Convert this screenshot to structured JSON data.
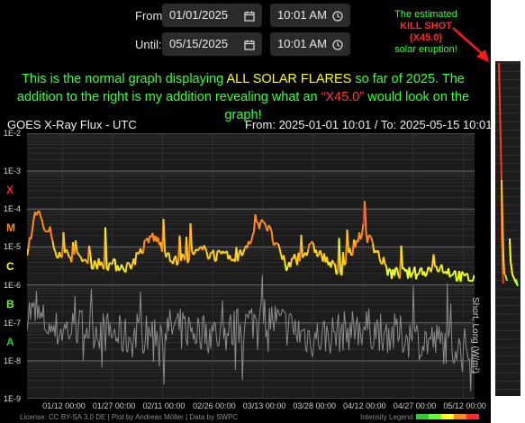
{
  "controls": {
    "from_label": "From:",
    "from_date": "01/01/2025",
    "from_time": "10:01 AM",
    "until_label": "Until:",
    "until_date": "05/15/2025",
    "until_time": "10:01 AM"
  },
  "icons": {
    "date": "calendar-icon",
    "time": "clock-icon"
  },
  "callout": {
    "line1": "The estimated",
    "line2": "KILL SHOT",
    "line3": "(X45.0)",
    "line4": "solar eruption!",
    "arrow_color": "#ff1a1a"
  },
  "message": {
    "part1": "This is the normal graph displaying ",
    "highlight1": "ALL SOLAR FLARES",
    "part2": " so far of 2025.  The addition to the right is my addition revealing what an ",
    "highlight2": "“X45.0”",
    "part3": " would look on the graph!"
  },
  "chart": {
    "title": "GOES X-Ray Flux - UTC",
    "range_prefix": "From:",
    "range_from": "2025-01-01 10:01",
    "range_sep": "/  To:",
    "range_to": "2025-05-15 10:01",
    "yticks": [
      "1E-2",
      "1E-3",
      "1E-4",
      "1E-5",
      "1E-6",
      "1E-7",
      "1E-8",
      "1E-9"
    ],
    "classes": [
      {
        "name": "X",
        "color": "#ff2a2a"
      },
      {
        "name": "M",
        "color": "#ff8c1a"
      },
      {
        "name": "C",
        "color": "#ffff1a"
      },
      {
        "name": "B",
        "color": "#66ff33"
      },
      {
        "name": "A",
        "color": "#33cc33"
      }
    ],
    "xticks": [
      "01/12 00:00",
      "01/27 00:00",
      "02/11 00:00",
      "02/26 00:00",
      "03/13 00:00",
      "03/28 00:00",
      "04/12 00:00",
      "04/27 00:00",
      "05/12 00:00"
    ],
    "side_label": "Short, Long (W/m²)",
    "footer_left": "License: CC BY-SA 3.0 DE | Plot by Andreas Möller | Data by SWPC",
    "footer_right": "Intensity Legend",
    "legend_colors": [
      "#33cc33",
      "#66ff33",
      "#ffff1a",
      "#ff8c1a",
      "#ff2a2a"
    ]
  },
  "chart_data": {
    "type": "line",
    "title": "GOES X-Ray Flux - UTC",
    "ylabel": "Short, Long (W/m²)",
    "yscale": "log",
    "ylim": [
      1e-09,
      0.01
    ],
    "x_range": [
      "2025-01-01 10:01",
      "2025-05-15 10:01"
    ],
    "series": [
      {
        "name": "Long",
        "x": [
          "2025-01-01",
          "2025-01-04",
          "2025-01-10",
          "2025-01-20",
          "2025-02-01",
          "2025-02-08",
          "2025-02-15",
          "2025-02-23",
          "2025-03-05",
          "2025-03-13",
          "2025-03-20",
          "2025-03-28",
          "2025-04-05",
          "2025-04-12",
          "2025-04-20",
          "2025-04-27",
          "2025-05-05",
          "2025-05-12",
          "2025-05-15"
        ],
        "values": [
          3e-06,
          0.0001,
          8e-06,
          4e-06,
          3e-06,
          2e-05,
          4e-06,
          8e-06,
          4e-06,
          6e-05,
          3e-06,
          1e-05,
          2e-06,
          3e-05,
          2e-06,
          2e-06,
          3e-06,
          1.5e-06,
          1.5e-06
        ]
      },
      {
        "name": "Short",
        "x": [
          "2025-01-01",
          "2025-01-10",
          "2025-01-20",
          "2025-02-01",
          "2025-02-15",
          "2025-03-01",
          "2025-03-13",
          "2025-03-28",
          "2025-04-12",
          "2025-04-27",
          "2025-05-12",
          "2025-05-15"
        ],
        "values": [
          3e-07,
          8e-08,
          1e-07,
          5e-08,
          1e-07,
          6e-08,
          2e-07,
          5e-08,
          1e-07,
          5e-08,
          3e-08,
          2e-08
        ]
      }
    ]
  }
}
